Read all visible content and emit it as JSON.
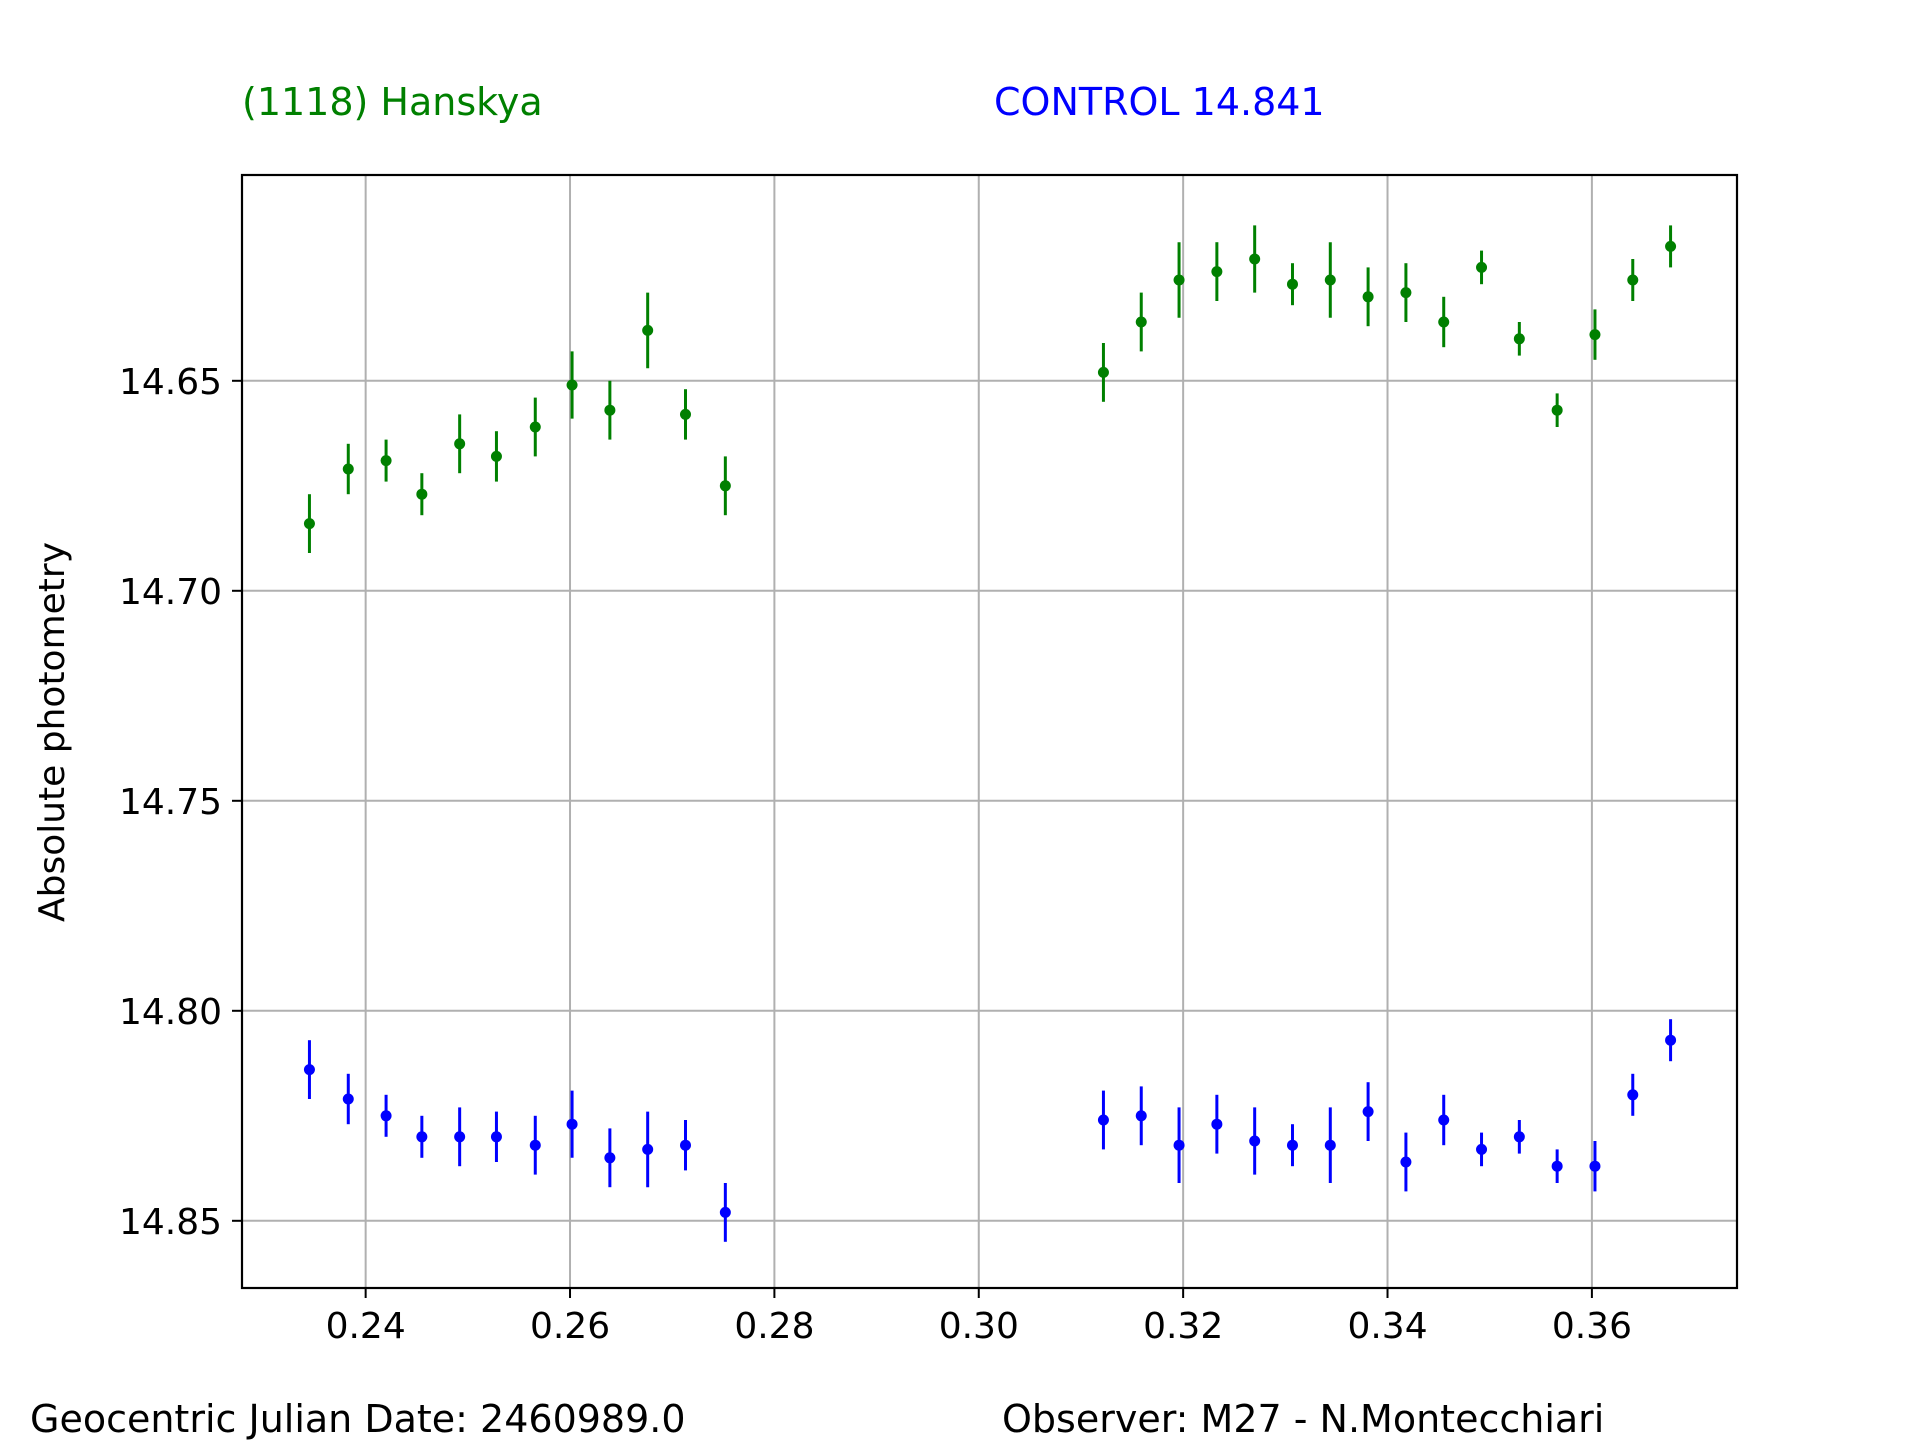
{
  "header": {
    "target_label": "(1118) Hanskya",
    "control_label": "CONTROL 14.841"
  },
  "footer": {
    "date_label": "Geocentric Julian Date: 2460989.0",
    "observer_label": "Observer: M27 - N.Montecchiari"
  },
  "colors": {
    "target": "#008000",
    "control": "#0000ff",
    "grid": "#b0b0b0",
    "axis": "#000000"
  },
  "chart_data": {
    "type": "scatter",
    "ylabel": "Absolute photometry",
    "xlabel": "",
    "xlim": [
      0.2279,
      0.3742
    ],
    "ylim": [
      14.866,
      14.601
    ],
    "y_inverted": true,
    "grid": true,
    "x_ticks": [
      0.24,
      0.26,
      0.28,
      0.3,
      0.32,
      0.34,
      0.36
    ],
    "x_tick_labels": [
      "0.24",
      "0.26",
      "0.28",
      "0.30",
      "0.32",
      "0.34",
      "0.36"
    ],
    "y_ticks": [
      14.65,
      14.7,
      14.75,
      14.8,
      14.85
    ],
    "y_tick_labels": [
      "14.65",
      "14.70",
      "14.75",
      "14.80",
      "14.85"
    ],
    "series": [
      {
        "name": "(1118) Hanskya",
        "color": "#008000",
        "x": [
          0.2345,
          0.2383,
          0.242,
          0.2455,
          0.2492,
          0.2528,
          0.2566,
          0.2602,
          0.2639,
          0.2676,
          0.2713,
          0.2752,
          0.3122,
          0.3159,
          0.3196,
          0.3233,
          0.327,
          0.3307,
          0.3344,
          0.3381,
          0.3418,
          0.3455,
          0.3492,
          0.3529,
          0.3566,
          0.3603,
          0.364,
          0.3677
        ],
        "y": [
          14.684,
          14.671,
          14.669,
          14.677,
          14.665,
          14.668,
          14.661,
          14.651,
          14.657,
          14.638,
          14.658,
          14.675,
          14.648,
          14.636,
          14.626,
          14.624,
          14.621,
          14.627,
          14.626,
          14.63,
          14.629,
          14.636,
          14.623,
          14.64,
          14.657,
          14.639,
          14.626,
          14.618
        ],
        "err": [
          0.007,
          0.006,
          0.005,
          0.005,
          0.007,
          0.006,
          0.007,
          0.008,
          0.007,
          0.009,
          0.006,
          0.007,
          0.007,
          0.007,
          0.009,
          0.007,
          0.008,
          0.005,
          0.009,
          0.007,
          0.007,
          0.006,
          0.004,
          0.004,
          0.004,
          0.006,
          0.005,
          0.005
        ]
      },
      {
        "name": "CONTROL 14.841",
        "color": "#0000ff",
        "x": [
          0.2345,
          0.2383,
          0.242,
          0.2455,
          0.2492,
          0.2528,
          0.2566,
          0.2602,
          0.2639,
          0.2676,
          0.2713,
          0.2752,
          0.3122,
          0.3159,
          0.3196,
          0.3233,
          0.327,
          0.3307,
          0.3344,
          0.3381,
          0.3418,
          0.3455,
          0.3492,
          0.3529,
          0.3566,
          0.3603,
          0.364,
          0.3677
        ],
        "y": [
          14.814,
          14.821,
          14.825,
          14.83,
          14.83,
          14.83,
          14.832,
          14.827,
          14.835,
          14.833,
          14.832,
          14.848,
          14.826,
          14.825,
          14.832,
          14.827,
          14.831,
          14.832,
          14.832,
          14.824,
          14.836,
          14.826,
          14.833,
          14.83,
          14.837,
          14.837,
          14.82,
          14.807
        ],
        "err": [
          0.007,
          0.006,
          0.005,
          0.005,
          0.007,
          0.006,
          0.007,
          0.008,
          0.007,
          0.009,
          0.006,
          0.007,
          0.007,
          0.007,
          0.009,
          0.007,
          0.008,
          0.005,
          0.009,
          0.007,
          0.007,
          0.006,
          0.004,
          0.004,
          0.004,
          0.006,
          0.005,
          0.005
        ]
      }
    ]
  }
}
